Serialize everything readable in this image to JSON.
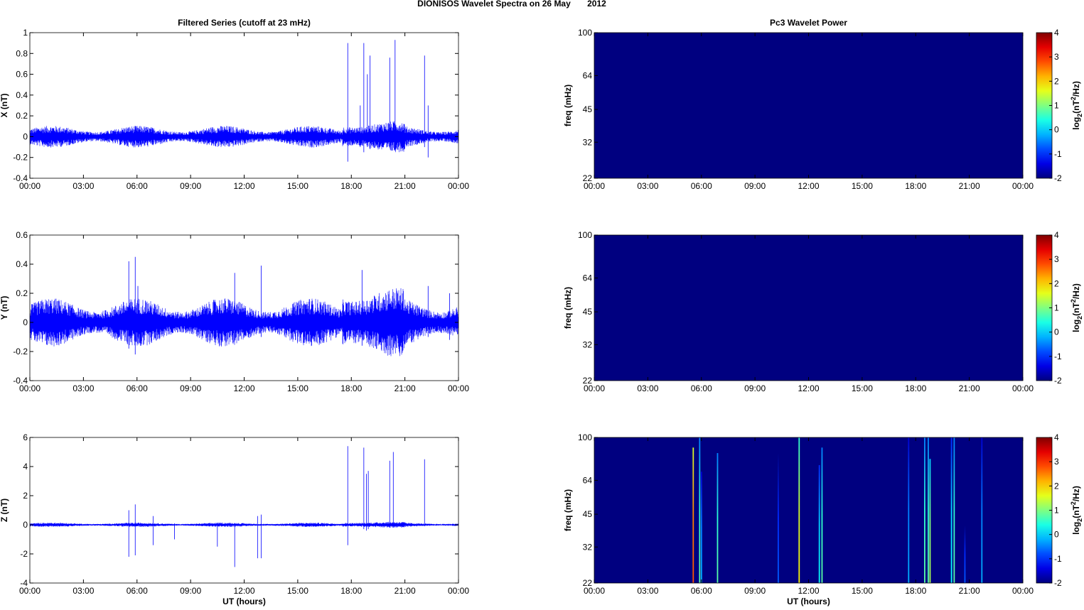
{
  "title": "DIONISOS Wavelet Spectra on 26 May       2012",
  "colors": {
    "noise": "#0000ff",
    "background_power": "#00008f"
  },
  "chart_data": [
    {
      "type": "line",
      "panel": "X",
      "title": "Filtered Series (cutoff at 23 mHz)",
      "ylabel": "X (nT)",
      "xlabel": "",
      "ylim": [
        -0.4,
        1
      ],
      "yticks": [
        -0.4,
        -0.2,
        0,
        0.2,
        0.4,
        0.6,
        0.8,
        1
      ],
      "ytick_labels": [
        "-0.4",
        "-0.2",
        "0",
        "0.2",
        "0.4",
        "0.6",
        "0.8",
        "1"
      ],
      "noise_amplitude": 0.05,
      "spikes": [
        [
          17.8,
          0.9,
          -0.24
        ],
        [
          18.5,
          0.3,
          -0.1
        ],
        [
          18.7,
          0.9,
          -0.15
        ],
        [
          18.9,
          0.6,
          -0.1
        ],
        [
          19.05,
          0.78,
          -0.12
        ],
        [
          20.15,
          0.76,
          -0.1
        ],
        [
          20.45,
          0.93,
          -0.1
        ],
        [
          22.1,
          0.78,
          -0.1
        ],
        [
          22.3,
          0.3,
          -0.2
        ]
      ]
    },
    {
      "type": "line",
      "panel": "Y",
      "title": "",
      "ylabel": "Y (nT)",
      "xlabel": "",
      "ylim": [
        -0.4,
        0.6
      ],
      "yticks": [
        -0.4,
        -0.2,
        0,
        0.2,
        0.4,
        0.6
      ],
      "ytick_labels": [
        "-0.4",
        "-0.2",
        "0",
        "0.2",
        "0.4",
        "0.6"
      ],
      "noise_amplitude": 0.08,
      "spikes": [
        [
          5.54,
          0.42,
          -0.18
        ],
        [
          5.9,
          0.45,
          -0.22
        ],
        [
          6.05,
          0.25,
          -0.1
        ],
        [
          11.47,
          0.34,
          -0.1
        ],
        [
          12.95,
          0.39,
          -0.1
        ],
        [
          18.6,
          0.36,
          -0.16
        ],
        [
          22.3,
          0.25,
          -0.1
        ],
        [
          23.5,
          0.2,
          -0.12
        ]
      ]
    },
    {
      "type": "line",
      "panel": "Z",
      "title": "",
      "ylabel": "Z (nT)",
      "xlabel": "UT (hours)",
      "ylim": [
        -4,
        6
      ],
      "yticks": [
        -4,
        -2,
        0,
        2,
        4,
        6
      ],
      "ytick_labels": [
        "-4",
        "-2",
        "0",
        "2",
        "4",
        "6"
      ],
      "noise_amplitude": 0.07,
      "spikes": [
        [
          5.54,
          1.0,
          -2.2
        ],
        [
          5.9,
          1.4,
          -2.1
        ],
        [
          6.9,
          0.6,
          -1.4
        ],
        [
          8.1,
          0.1,
          -1.0
        ],
        [
          10.5,
          0.1,
          -1.5
        ],
        [
          11.47,
          0.1,
          -2.9
        ],
        [
          12.75,
          0.6,
          -2.3
        ],
        [
          12.95,
          0.7,
          -2.3
        ],
        [
          17.8,
          5.4,
          -1.4
        ],
        [
          18.7,
          5.3,
          -0.3
        ],
        [
          18.85,
          3.5,
          -0.4
        ],
        [
          18.95,
          3.7,
          -0.3
        ],
        [
          20.15,
          4.4,
          -0.2
        ],
        [
          20.35,
          5.0,
          -0.2
        ],
        [
          22.1,
          4.5,
          -0.1
        ]
      ]
    },
    {
      "type": "heatmap",
      "panel": "X",
      "title": "Pc3 Wavelet Power",
      "ylabel": "freq (mHz)",
      "xlabel": "",
      "ylim": [
        22,
        100
      ],
      "yscale": "log",
      "yticks": [
        22,
        32,
        45,
        64,
        100
      ],
      "ytick_labels": [
        "22",
        "32",
        "45",
        "64",
        "100"
      ],
      "clim": [
        -2,
        4
      ],
      "colorbar_label": "log2(nT^2/Hz)",
      "colorbar_ticks": [
        "-2",
        "-1",
        "0",
        "1",
        "2",
        "3",
        "4"
      ],
      "background_value": -2,
      "streaks": []
    },
    {
      "type": "heatmap",
      "panel": "Y",
      "title": "",
      "ylabel": "freq (mHz)",
      "xlabel": "",
      "ylim": [
        22,
        100
      ],
      "yscale": "log",
      "yticks": [
        22,
        32,
        45,
        64,
        100
      ],
      "ytick_labels": [
        "22",
        "32",
        "45",
        "64",
        "100"
      ],
      "clim": [
        -2,
        4
      ],
      "colorbar_label": "log2(nT^2/Hz)",
      "colorbar_ticks": [
        "-2",
        "-1",
        "0",
        "1",
        "2",
        "3",
        "4"
      ],
      "background_value": -2,
      "streaks": []
    },
    {
      "type": "heatmap",
      "panel": "Z",
      "title": "",
      "ylabel": "freq (mHz)",
      "xlabel": "UT (hours)",
      "ylim": [
        22,
        100
      ],
      "yscale": "log",
      "yticks": [
        22,
        32,
        45,
        64,
        100
      ],
      "ytick_labels": [
        "22",
        "32",
        "45",
        "64",
        "100"
      ],
      "clim": [
        -2,
        4
      ],
      "colorbar_label": "log2(nT^2/Hz)",
      "colorbar_ticks": [
        "-2",
        "-1",
        "0",
        "1",
        "2",
        "3",
        "4"
      ],
      "background_value": -2,
      "streaks": [
        [
          5.54,
          90,
          2.5
        ],
        [
          5.9,
          100,
          0.5
        ],
        [
          6.0,
          70,
          -0.5
        ],
        [
          6.9,
          85,
          0.5
        ],
        [
          10.3,
          85,
          -1
        ],
        [
          11.47,
          100,
          1.5
        ],
        [
          12.6,
          75,
          0
        ],
        [
          12.75,
          90,
          0.5
        ],
        [
          17.6,
          100,
          -0.5
        ],
        [
          18.5,
          100,
          0.5
        ],
        [
          18.7,
          100,
          0.5
        ],
        [
          18.8,
          80,
          1
        ],
        [
          20.0,
          100,
          0
        ],
        [
          20.15,
          100,
          0.5
        ],
        [
          20.75,
          40,
          -1
        ],
        [
          21.7,
          100,
          -0.5
        ]
      ]
    }
  ],
  "xtick_labels": [
    "00:00",
    "03:00",
    "06:00",
    "09:00",
    "12:00",
    "15:00",
    "18:00",
    "21:00",
    "00:00"
  ],
  "xlim_hours": [
    0,
    24
  ]
}
